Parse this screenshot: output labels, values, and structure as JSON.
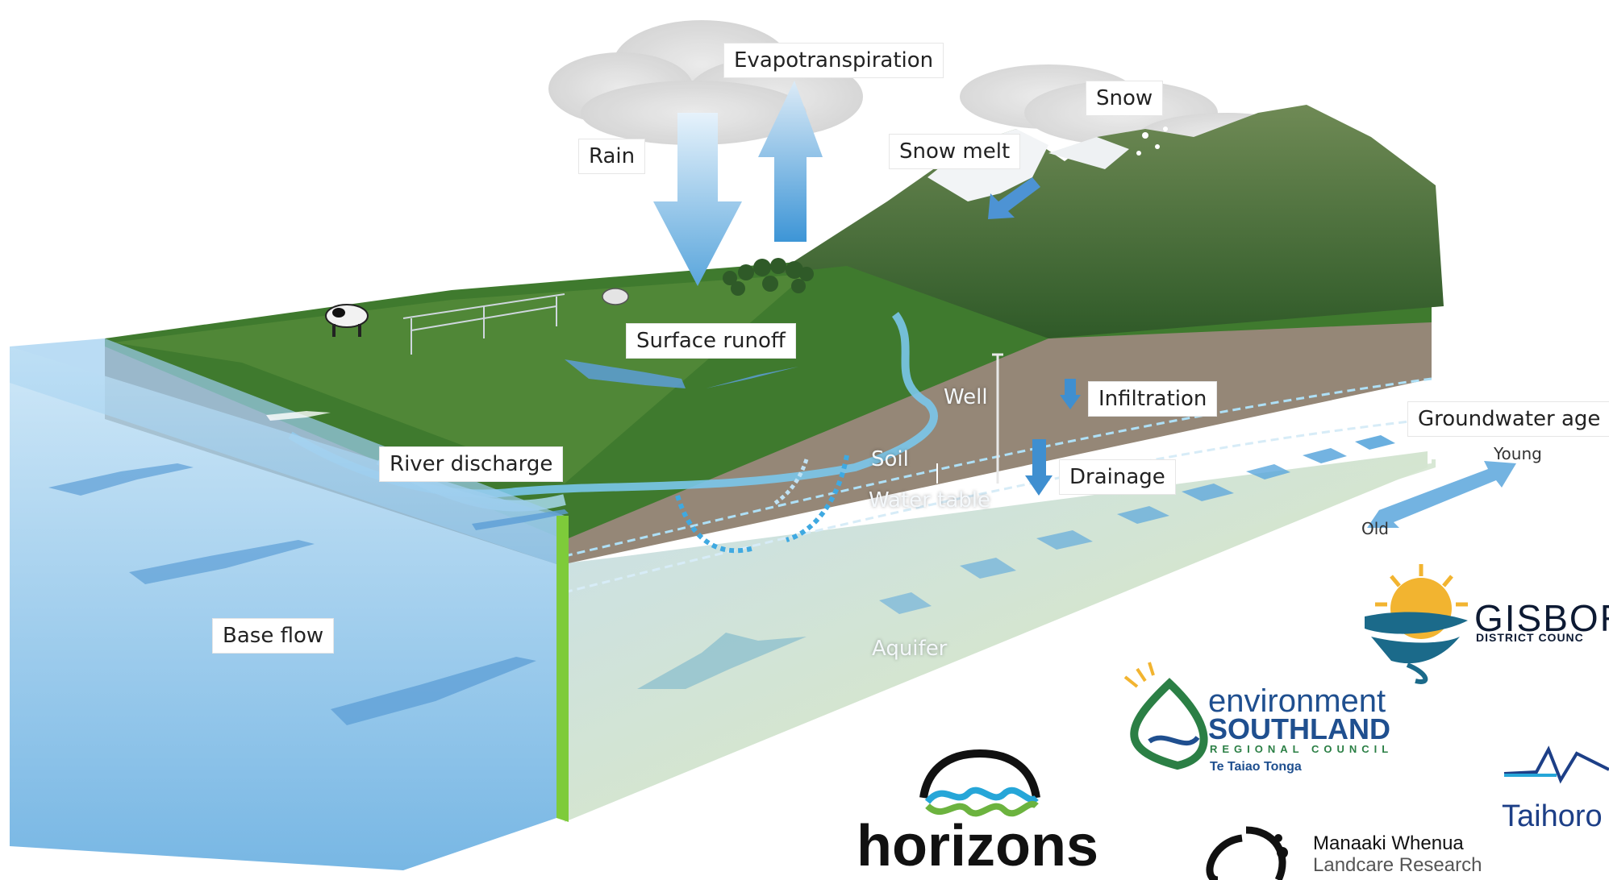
{
  "diagram": {
    "labels": {
      "evapotranspiration": "Evapotranspiration",
      "rain": "Rain",
      "snow": "Snow",
      "snow_melt": "Snow melt",
      "surface_runoff": "Surface runoff",
      "infiltration": "Infiltration",
      "well": "Well",
      "groundwater_age": "Groundwater age",
      "young": "Young",
      "old": "Old",
      "river_discharge": "River discharge",
      "soil": "Soil",
      "water_table": "Water table",
      "drainage": "Drainage",
      "base_flow": "Base flow",
      "aquifer": "Aquifer"
    }
  },
  "logos": {
    "gisborne": {
      "name": "GISBOR",
      "sub": "DISTRICT COUNC"
    },
    "environment_southland": {
      "line1": "environment",
      "line2": "SOUTHLAND",
      "line3": "REGIONAL COUNCIL",
      "line4": "Te Taiao Tonga"
    },
    "horizons": {
      "name": "horizons"
    },
    "manaaki_whenua": {
      "line1": "Manaaki Whenua",
      "line2": "Landcare Research"
    },
    "taihoro": {
      "name": "Taihoro"
    }
  },
  "colors": {
    "water_blue": "#5aa6dc",
    "grass_green": "#3f7a2e",
    "soil_brown": "#8a7a68",
    "aquifer_green": "#cfe0c8"
  }
}
